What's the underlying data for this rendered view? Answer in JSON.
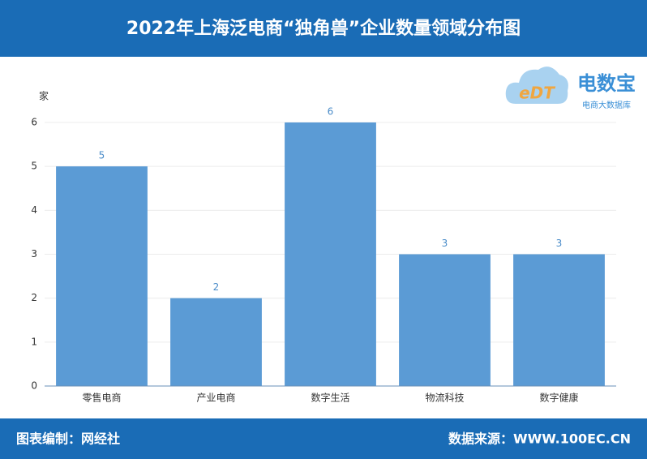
{
  "chart_data": {
    "type": "bar",
    "title": "2022年上海泛电商“独角兽”企业数量领域分布图",
    "y_label": "家",
    "categories": [
      "零售电商",
      "产业电商",
      "数字生活",
      "物流科技",
      "数字健康"
    ],
    "values": [
      5,
      2,
      6,
      3,
      3
    ],
    "color": "#5b9bd5",
    "ylim": [
      0,
      6
    ],
    "yticks": [
      0,
      1,
      2,
      3,
      4,
      5,
      6
    ],
    "grid": true
  },
  "footer": {
    "left": "图表编制：网经社",
    "right": "数据来源：WWW.100EC.CN"
  },
  "logo": {
    "mark": "eDT",
    "name": "电数宝",
    "tagline": "电商大数据库"
  }
}
